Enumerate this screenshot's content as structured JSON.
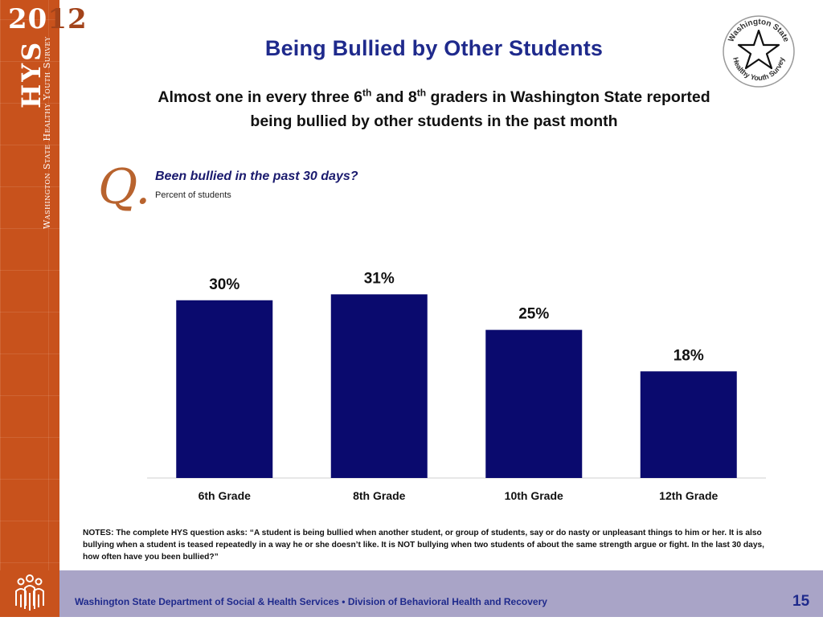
{
  "sidebar": {
    "year_part1": "20",
    "year_part2": "12",
    "acronym": "HYS",
    "survey_name": "Washington State Healthy Youth Survey"
  },
  "header": {
    "title": "Being Bullied by Other Students",
    "subtitle_parts": {
      "p1": "Almost one in every three 6",
      "sup1": "th",
      "p2": " and 8",
      "sup2": "th",
      "p3": " graders in Washington State reported",
      "p4": "being bullied by other students in the past month"
    }
  },
  "logo": {
    "icon": "star-icon",
    "top_text": "Washington State",
    "bottom_text": "Healthy Youth Survey"
  },
  "question": {
    "letter": "Q.",
    "text": "Been bullied in the past 30 days?",
    "unit_note": "Percent of students"
  },
  "chart_data": {
    "type": "bar",
    "categories": [
      "6th Grade",
      "8th Grade",
      "10th Grade",
      "12th Grade"
    ],
    "values": [
      30,
      31,
      25,
      18
    ],
    "value_labels": [
      "30%",
      "31%",
      "25%",
      "18%"
    ],
    "ylim": [
      0,
      40
    ],
    "bar_color": "#0a0a6e",
    "grid": false
  },
  "notes": "NOTES: The complete HYS question asks: “A student is being bullied when another student, or group of students, say or do nasty or unpleasant things to him or her. It is also bullying when a student is teased repeatedly in a way he or she doesn’t like. It is NOT bullying when two students of about the same strength argue or fight. In the last 30 days, how often have you been bullied?”",
  "footer": {
    "icon": "people-icon",
    "text": "Washington State Department of Social & Health Services • Division of Behavioral Health and Recovery",
    "page_number": "15"
  },
  "colors": {
    "sidebar": "#c8521c",
    "title": "#1f2a8c",
    "footer": "#a9a4c7"
  }
}
